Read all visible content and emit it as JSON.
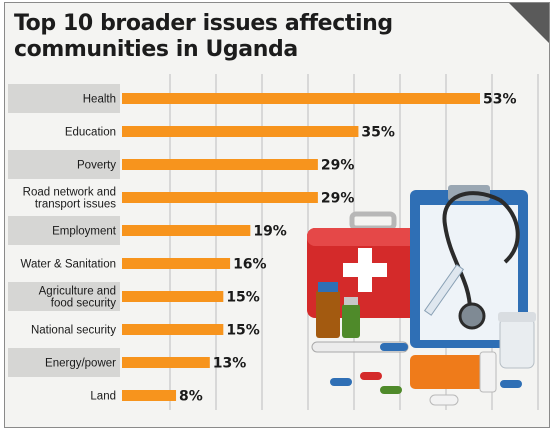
{
  "title": "Top 10 broader issues affecting communities in Uganda",
  "colors": {
    "bar": "#f7941d",
    "band": "#d6d6d4",
    "grid": "#bdbdbd",
    "text": "#1a1a1a"
  },
  "illustration": {
    "name": "medical-supplies-illustration",
    "description_icon": "first-aid-kit-icon"
  },
  "chart_data": {
    "type": "bar",
    "orientation": "horizontal",
    "categories": [
      "Health",
      "Education",
      "Poverty",
      "Road network and transport issues",
      "Employment",
      "Water & Sanitation",
      "Agriculture and food security",
      "National security",
      "Energy/power",
      "Land"
    ],
    "category_lines": [
      [
        "Health"
      ],
      [
        "Education"
      ],
      [
        "Poverty"
      ],
      [
        "Road network and",
        "transport issues"
      ],
      [
        "Employment"
      ],
      [
        "Water & Sanitation"
      ],
      [
        "Agriculture and",
        "food security"
      ],
      [
        "National security"
      ],
      [
        "Energy/power"
      ],
      [
        "Land"
      ]
    ],
    "values": [
      53,
      35,
      29,
      29,
      19,
      16,
      15,
      15,
      13,
      8
    ],
    "value_labels": [
      "53%",
      "35%",
      "29%",
      "29%",
      "19%",
      "16%",
      "15%",
      "15%",
      "13%",
      "8%"
    ],
    "unit": "%",
    "xlim": [
      0,
      55
    ],
    "grid": true,
    "legend": "none"
  }
}
